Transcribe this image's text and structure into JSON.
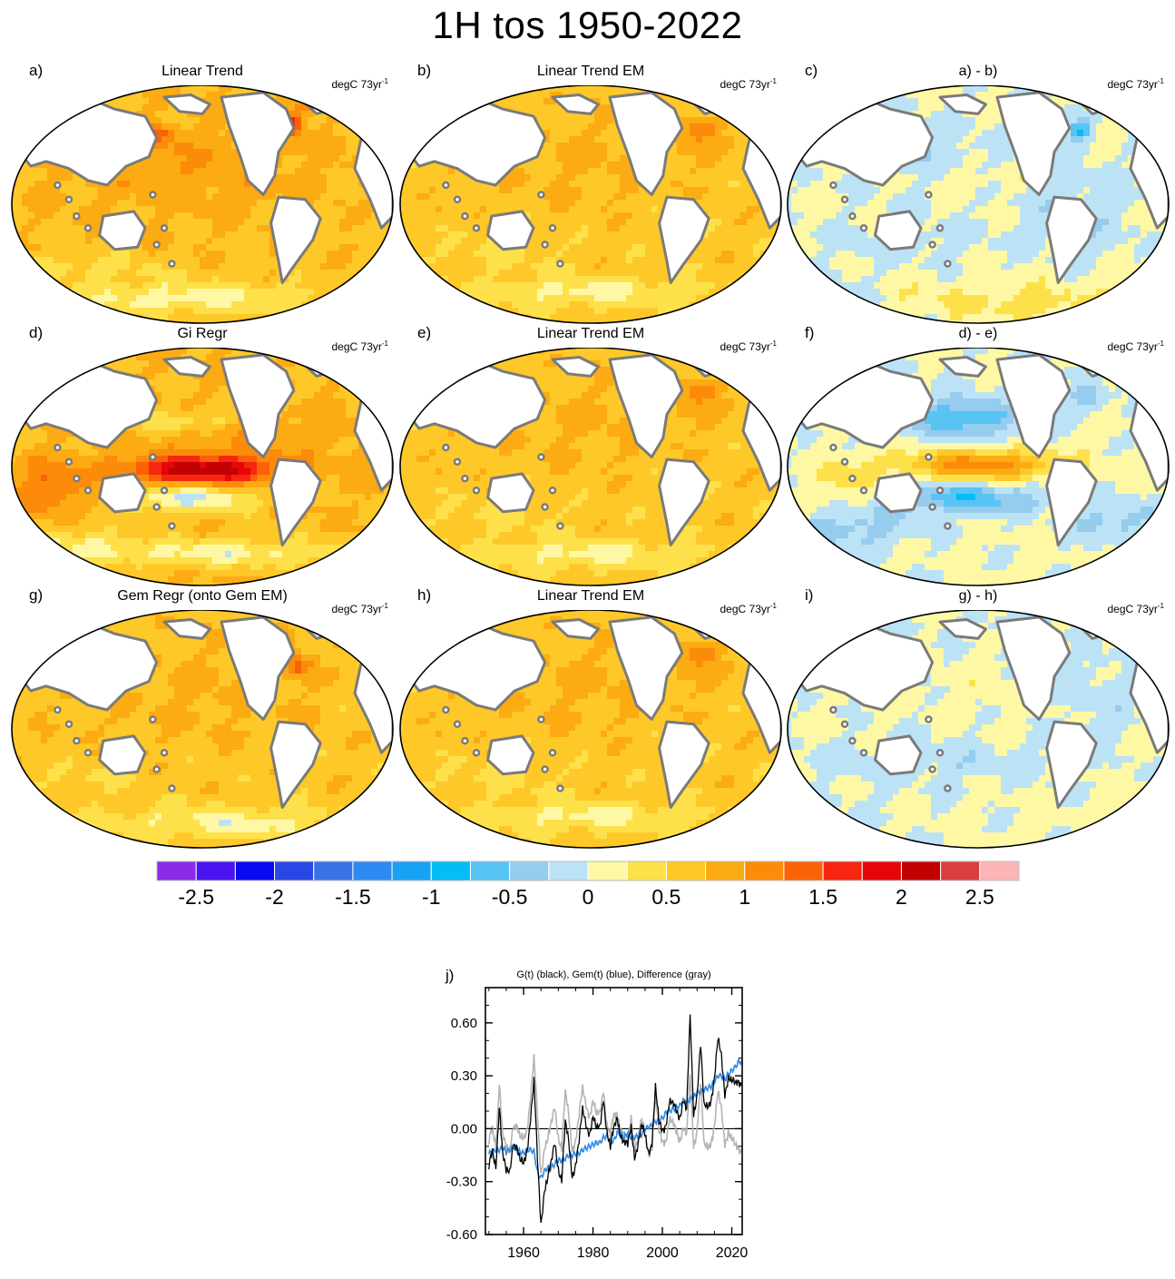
{
  "title": "1H tos 1950-2022",
  "units_label": "degC 73yr",
  "units_exp": "-1",
  "palette": [
    "#8a2be8",
    "#4a14f0",
    "#0a08ee",
    "#2848e6",
    "#3a72e6",
    "#2e8af2",
    "#18a2f4",
    "#04bcf6",
    "#58c4f4",
    "#96ccee",
    "#bce2f6",
    "#fef8a4",
    "#fee14a",
    "#fec829",
    "#fcab12",
    "#fc8b0a",
    "#fa6206",
    "#f62610",
    "#e6060a",
    "#c20202",
    "#dc3e3e",
    "#fcb4b4"
  ],
  "panels": [
    {
      "id": "a",
      "label": "a)",
      "title": "Linear Trend",
      "pattern": "trend"
    },
    {
      "id": "b",
      "label": "b)",
      "title": "Linear Trend EM",
      "pattern": "em"
    },
    {
      "id": "c",
      "label": "c)",
      "title": "a) - b)",
      "pattern": "diff1"
    },
    {
      "id": "d",
      "label": "d)",
      "title": "Gi Regr",
      "pattern": "gi"
    },
    {
      "id": "e",
      "label": "e)",
      "title": "Linear Trend EM",
      "pattern": "em"
    },
    {
      "id": "f",
      "label": "f)",
      "title": "d) - e)",
      "pattern": "diff2"
    },
    {
      "id": "g",
      "label": "g)",
      "title": "Gem Regr (onto Gem EM)",
      "pattern": "gem"
    },
    {
      "id": "h",
      "label": "h)",
      "title": "Linear Trend EM",
      "pattern": "em"
    },
    {
      "id": "i",
      "label": "i)",
      "title": "g) - h)",
      "pattern": "diff3"
    }
  ],
  "colorbar": {
    "min": -2.75,
    "max": 2.75,
    "step": 0.25,
    "labels": [
      "-2.5",
      "-2",
      "-1.5",
      "-1",
      "-0.5",
      "0",
      "0.5",
      "1",
      "1.5",
      "2",
      "2.5"
    ],
    "label_values": [
      -2.5,
      -2,
      -1.5,
      -1,
      -0.5,
      0,
      0.5,
      1,
      1.5,
      2,
      2.5
    ]
  },
  "chart_data": {
    "type": "line",
    "label": "j)",
    "title": "G(t)  (black), Gem(t) (blue), Difference (gray)",
    "xlim": [
      1949,
      2023
    ],
    "ylim": [
      -0.6,
      0.8
    ],
    "xticks": [
      1960,
      1980,
      2000,
      2020
    ],
    "xtick_labels": [
      "1960",
      "1980",
      "2000",
      "2020"
    ],
    "yticks": [
      -0.6,
      -0.3,
      0.0,
      0.3,
      0.6
    ],
    "ytick_labels": [
      "-0.60",
      "-0.30",
      "0.00",
      "0.30",
      "0.60"
    ],
    "series": [
      {
        "name": "Difference",
        "color": "#b4b4b4",
        "x": [
          1950,
          1951,
          1952,
          1953,
          1954,
          1955,
          1956,
          1957,
          1958,
          1959,
          1960,
          1961,
          1962,
          1963,
          1964,
          1965,
          1966,
          1967,
          1968,
          1969,
          1970,
          1971,
          1972,
          1973,
          1974,
          1975,
          1976,
          1977,
          1978,
          1979,
          1980,
          1981,
          1982,
          1983,
          1984,
          1985,
          1986,
          1987,
          1988,
          1989,
          1990,
          1991,
          1992,
          1993,
          1994,
          1995,
          1996,
          1997,
          1998,
          1999,
          2000,
          2001,
          2002,
          2003,
          2004,
          2005,
          2006,
          2007,
          2008,
          2009,
          2010,
          2011,
          2012,
          2013,
          2014,
          2015,
          2016,
          2017,
          2018,
          2019,
          2020,
          2021,
          2022
        ],
        "values": [
          -0.1,
          -0.02,
          -0.08,
          0.28,
          -0.05,
          -0.14,
          -0.12,
          0.05,
          0.02,
          -0.08,
          -0.07,
          0.02,
          0.2,
          0.38,
          0.05,
          -0.25,
          -0.08,
          -0.06,
          0.0,
          0.12,
          -0.02,
          -0.1,
          0.18,
          0.06,
          -0.1,
          -0.04,
          0.06,
          0.2,
          0.14,
          0.1,
          0.16,
          0.05,
          0.08,
          0.25,
          0.04,
          -0.06,
          0.05,
          0.1,
          0.02,
          -0.04,
          -0.1,
          0.06,
          -0.08,
          -0.04,
          0.02,
          -0.05,
          -0.12,
          -0.08,
          0.18,
          -0.04,
          -0.06,
          -0.04,
          0.05,
          0.0,
          -0.02,
          -0.04,
          0.02,
          -0.06,
          0.28,
          -0.08,
          0.02,
          0.26,
          -0.12,
          -0.1,
          -0.05,
          0.02,
          0.18,
          0.1,
          -0.06,
          0.0,
          -0.08,
          -0.12,
          -0.1
        ]
      },
      {
        "name": "Gem(t)",
        "color": "#2e8ae6",
        "x": [
          1950,
          1951,
          1952,
          1953,
          1954,
          1955,
          1956,
          1957,
          1958,
          1959,
          1960,
          1961,
          1962,
          1963,
          1964,
          1965,
          1966,
          1967,
          1968,
          1969,
          1970,
          1971,
          1972,
          1973,
          1974,
          1975,
          1976,
          1977,
          1978,
          1979,
          1980,
          1981,
          1982,
          1983,
          1984,
          1985,
          1986,
          1987,
          1988,
          1989,
          1990,
          1991,
          1992,
          1993,
          1994,
          1995,
          1996,
          1997,
          1998,
          1999,
          2000,
          2001,
          2002,
          2003,
          2004,
          2005,
          2006,
          2007,
          2008,
          2009,
          2010,
          2011,
          2012,
          2013,
          2014,
          2015,
          2016,
          2017,
          2018,
          2019,
          2020,
          2021,
          2022
        ],
        "values": [
          -0.14,
          -0.13,
          -0.12,
          -0.12,
          -0.11,
          -0.13,
          -0.12,
          -0.1,
          -0.12,
          -0.13,
          -0.14,
          -0.12,
          -0.12,
          -0.13,
          -0.25,
          -0.28,
          -0.24,
          -0.22,
          -0.22,
          -0.2,
          -0.18,
          -0.18,
          -0.17,
          -0.15,
          -0.15,
          -0.14,
          -0.14,
          -0.12,
          -0.11,
          -0.1,
          -0.09,
          -0.08,
          -0.08,
          -0.05,
          -0.04,
          -0.07,
          -0.07,
          -0.02,
          -0.03,
          -0.05,
          -0.02,
          -0.05,
          -0.05,
          -0.04,
          -0.03,
          0.0,
          0.01,
          0.02,
          0.04,
          0.05,
          0.06,
          0.09,
          0.1,
          0.11,
          0.12,
          0.13,
          0.16,
          0.14,
          0.17,
          0.18,
          0.2,
          0.21,
          0.22,
          0.23,
          0.24,
          0.27,
          0.3,
          0.3,
          0.28,
          0.31,
          0.33,
          0.35,
          0.38
        ]
      },
      {
        "name": "G(t)",
        "color": "#000000",
        "x": [
          1950,
          1951,
          1952,
          1953,
          1954,
          1955,
          1956,
          1957,
          1958,
          1959,
          1960,
          1961,
          1962,
          1963,
          1964,
          1965,
          1966,
          1967,
          1968,
          1969,
          1970,
          1971,
          1972,
          1973,
          1974,
          1975,
          1976,
          1977,
          1978,
          1979,
          1980,
          1981,
          1982,
          1983,
          1984,
          1985,
          1986,
          1987,
          1988,
          1989,
          1990,
          1991,
          1992,
          1993,
          1994,
          1995,
          1996,
          1997,
          1998,
          1999,
          2000,
          2001,
          2002,
          2003,
          2004,
          2005,
          2006,
          2007,
          2008,
          2009,
          2010,
          2011,
          2012,
          2013,
          2014,
          2015,
          2016,
          2017,
          2018,
          2019,
          2020,
          2021,
          2022
        ],
        "values": [
          -0.24,
          -0.15,
          -0.2,
          0.15,
          -0.16,
          -0.27,
          -0.24,
          -0.05,
          -0.1,
          -0.21,
          -0.21,
          -0.1,
          0.08,
          0.25,
          -0.2,
          -0.53,
          -0.32,
          -0.28,
          -0.22,
          -0.08,
          -0.2,
          -0.28,
          0.01,
          -0.09,
          -0.25,
          -0.18,
          -0.08,
          0.08,
          0.03,
          0.0,
          0.07,
          -0.03,
          0.0,
          0.2,
          0.0,
          -0.13,
          -0.02,
          0.08,
          -0.01,
          -0.09,
          -0.12,
          0.01,
          -0.13,
          -0.08,
          -0.01,
          -0.05,
          -0.11,
          -0.06,
          0.22,
          0.01,
          0.0,
          0.05,
          0.15,
          0.11,
          0.1,
          0.09,
          0.18,
          0.08,
          0.62,
          0.1,
          0.22,
          0.47,
          0.1,
          0.13,
          0.19,
          0.29,
          0.48,
          0.4,
          0.22,
          0.31,
          0.25,
          0.23,
          0.28
        ]
      }
    ],
    "zero_line": true
  }
}
